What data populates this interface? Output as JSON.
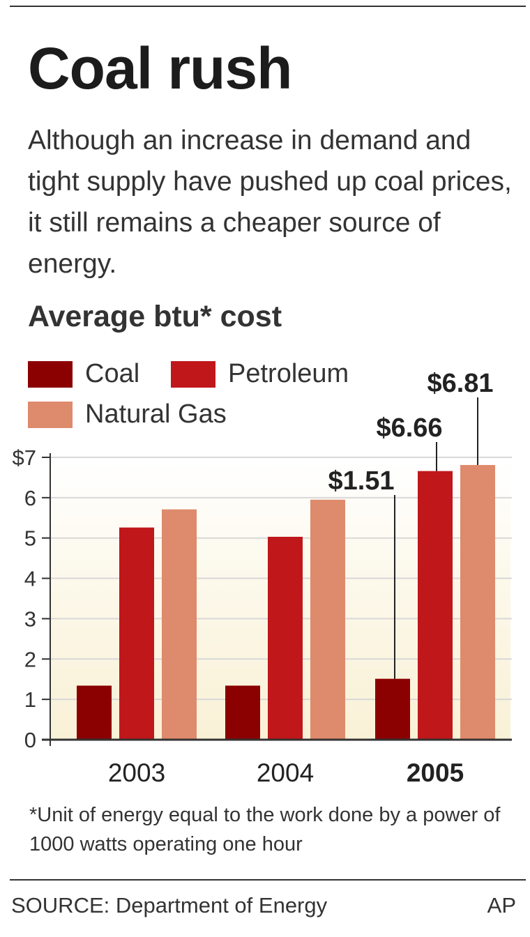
{
  "header": {
    "title": "Coal rush",
    "intro": "Although an increase in demand and tight supply have pushed up coal prices, it still remains a cheaper source of energy."
  },
  "chart_data": {
    "type": "bar",
    "title": "Average btu* cost",
    "categories": [
      "2003",
      "2004",
      "2005"
    ],
    "series": [
      {
        "name": "Coal",
        "color": "#8b0000",
        "values": [
          1.34,
          1.34,
          1.51
        ]
      },
      {
        "name": "Petroleum",
        "color": "#c0171b",
        "values": [
          5.26,
          5.03,
          6.66
        ]
      },
      {
        "name": "Natural Gas",
        "color": "#de8a6c",
        "values": [
          5.71,
          5.95,
          6.81
        ]
      }
    ],
    "ylim": [
      0,
      7
    ],
    "y_ticks": [
      "0",
      "1",
      "2",
      "3",
      "4",
      "5",
      "6",
      "$7"
    ],
    "annotations": [
      {
        "series": 0,
        "category": 2,
        "label": "$1.51"
      },
      {
        "series": 1,
        "category": 2,
        "label": "$6.66"
      },
      {
        "series": 2,
        "category": 2,
        "label": "$6.81"
      }
    ],
    "grid": true,
    "legend_position": "top-left"
  },
  "footnote": "*Unit of energy equal to the work done by a power of 1000 watts operating one hour",
  "footer": {
    "source": "SOURCE: Department of Energy",
    "credit": "AP"
  }
}
